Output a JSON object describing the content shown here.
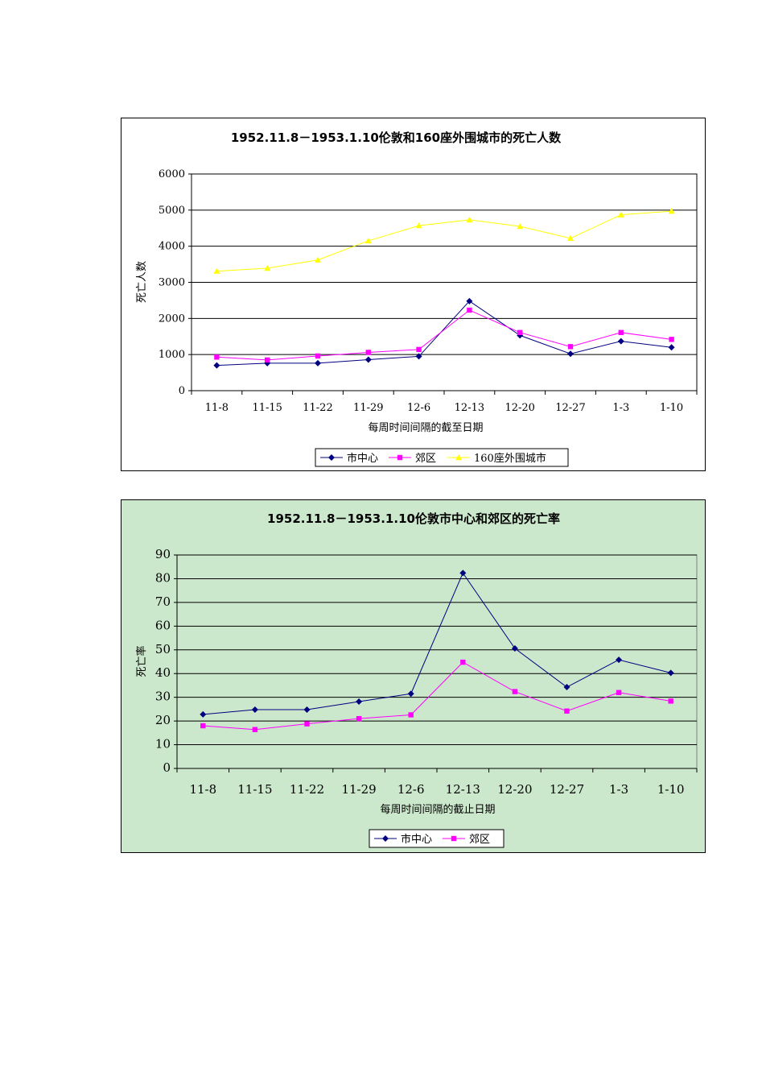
{
  "chart_data": [
    {
      "type": "line",
      "title": "1952.11.8－1953.1.10伦敦和160座外围城市的死亡人数",
      "xlabel": "每周时间间隔的截至日期",
      "ylabel": "死亡人数",
      "ylim": [
        0,
        6000
      ],
      "yticks": [
        "0",
        "1000",
        "2000",
        "3000",
        "4000",
        "5000",
        "6000"
      ],
      "categories": [
        "11-8",
        "11-15",
        "11-22",
        "11-29",
        "12-6",
        "12-13",
        "12-20",
        "12-27",
        "1-3",
        "1-10"
      ],
      "grid": true,
      "legend": "bottom",
      "series": [
        {
          "name": "市中心",
          "color": "#000080",
          "marker": "diamond",
          "values": [
            700,
            760,
            760,
            860,
            950,
            2480,
            1530,
            1020,
            1370,
            1200
          ]
        },
        {
          "name": "郊区",
          "color": "#ff00ff",
          "marker": "square",
          "values": [
            930,
            850,
            960,
            1060,
            1140,
            2230,
            1610,
            1220,
            1610,
            1420
          ]
        },
        {
          "name": "160座外围城市",
          "color": "#ffff00",
          "marker": "triangle",
          "values": [
            3310,
            3390,
            3620,
            4150,
            4570,
            4730,
            4550,
            4220,
            4870,
            4970
          ]
        }
      ]
    },
    {
      "type": "line",
      "title": "1952.11.8－1953.1.10伦敦市中心和郊区的死亡率",
      "xlabel": "每周时间间隔的截止日期",
      "ylabel": "死亡率",
      "ylim": [
        0,
        90
      ],
      "yticks": [
        "0",
        "10",
        "20",
        "30",
        "40",
        "50",
        "60",
        "70",
        "80",
        "90"
      ],
      "categories": [
        "11-8",
        "11-15",
        "11-22",
        "11-29",
        "12-6",
        "12-13",
        "12-20",
        "12-27",
        "1-3",
        "1-10"
      ],
      "grid": true,
      "legend": "bottom",
      "series": [
        {
          "name": "市中心",
          "color": "#000080",
          "marker": "diamond",
          "values": [
            22.8,
            24.8,
            24.8,
            28.2,
            31.5,
            82.4,
            50.6,
            34.3,
            45.8,
            40.3
          ]
        },
        {
          "name": "郊区",
          "color": "#ff00ff",
          "marker": "square",
          "values": [
            18.0,
            16.4,
            18.8,
            21.0,
            22.6,
            44.8,
            32.4,
            24.2,
            32.0,
            28.4
          ]
        }
      ]
    }
  ]
}
